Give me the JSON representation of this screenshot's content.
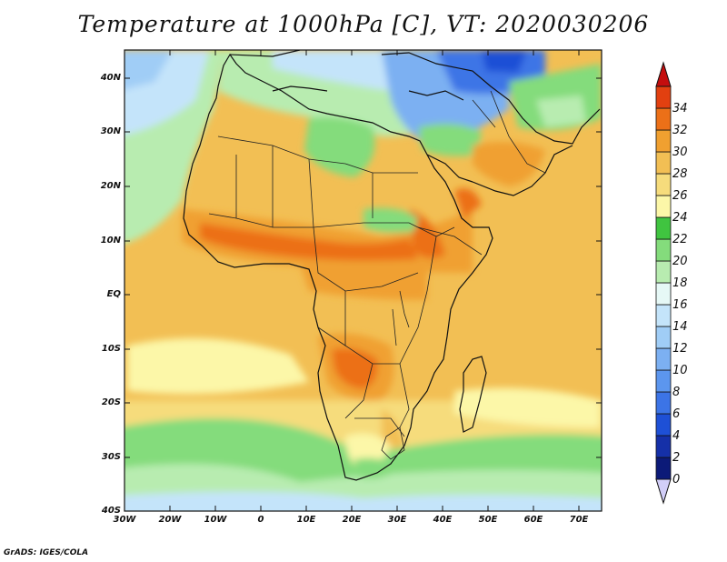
{
  "title": "Temperature at 1000hPa [C], VT: 2020030206",
  "credit": "GrADS: IGES/COLA",
  "map": {
    "projection": "latlon",
    "lon_range": [
      -30,
      75
    ],
    "lat_range": [
      -40,
      45
    ],
    "variable": "Temperature at 1000hPa",
    "units": "C",
    "lat_labels": [
      "40N",
      "30N",
      "20N",
      "10N",
      "EQ",
      "10S",
      "20S",
      "30S",
      "40S"
    ],
    "lon_labels": [
      "30W",
      "20W",
      "10W",
      "0",
      "10E",
      "20E",
      "30E",
      "40E",
      "50E",
      "60E",
      "70E"
    ]
  },
  "colorbar": {
    "levels": [
      "0",
      "2",
      "4",
      "6",
      "8",
      "10",
      "12",
      "14",
      "16",
      "18",
      "20",
      "22",
      "24",
      "26",
      "28",
      "30",
      "32",
      "34"
    ],
    "colors": [
      "#0c1a78",
      "#1530a8",
      "#1e50d6",
      "#3c74e6",
      "#5c96ee",
      "#7cb0f2",
      "#a0cdf6",
      "#c4e4fa",
      "#e6f8f6",
      "#b8ecb0",
      "#84dc7c",
      "#40c440",
      "#fcf7a8",
      "#f6dc7c",
      "#f2bf54",
      "#f0a030",
      "#ec7018",
      "#e24010",
      "#ca1c10"
    ],
    "under_color": "#d2cef8",
    "over_color": "#c40e0e"
  }
}
